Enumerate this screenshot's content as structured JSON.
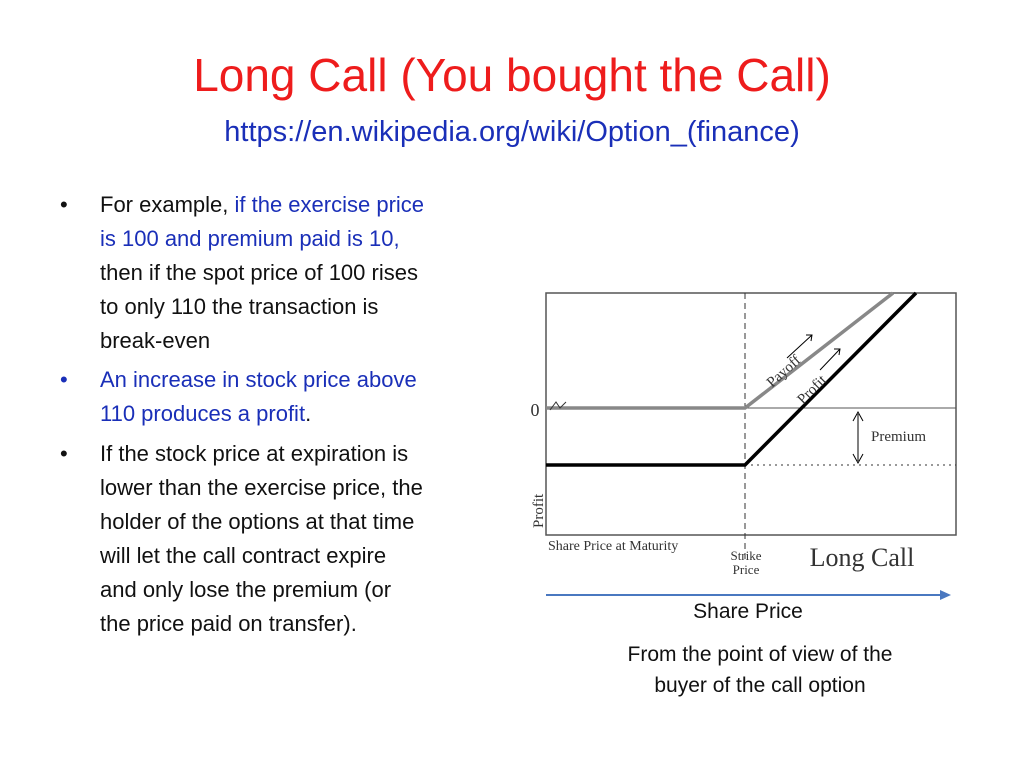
{
  "title": "Long Call (You bought the Call)",
  "subtitle": "https://en.wikipedia.org/wiki/Option_(finance)",
  "bullets": [
    {
      "lines": [
        [
          "For example, ",
          "if the exercise price"
        ],
        [
          "is 100 and premium paid is 10,"
        ],
        [
          "then if the spot price of 100 rises"
        ],
        [
          "to only 110 the transaction is"
        ],
        [
          "break-even"
        ]
      ]
    },
    {
      "lines": [
        [
          "An increase in stock price above"
        ],
        [
          "110 produces a profit",
          "."
        ]
      ]
    },
    {
      "lines": [
        [
          "If the stock price at expiration is"
        ],
        [
          "lower than the exercise price, the"
        ],
        [
          "holder of the options at that time"
        ],
        [
          "will let the call contract expire"
        ],
        [
          "and only lose the premium (or"
        ],
        [
          "the price paid on transfer)."
        ]
      ]
    }
  ],
  "diagram": {
    "zero_label": "0",
    "payoff_label": "Payoff",
    "profit_label": "Profit",
    "premium_label": "Premium",
    "y_axis_label": "Profit",
    "x_axis_label": "Share Price at Maturity",
    "strike_label": [
      "Strike",
      "Price"
    ],
    "title": "Long Call"
  },
  "arrow_label": "Share Price",
  "caption": [
    "From the point of view of the",
    "buyer of the call option"
  ]
}
